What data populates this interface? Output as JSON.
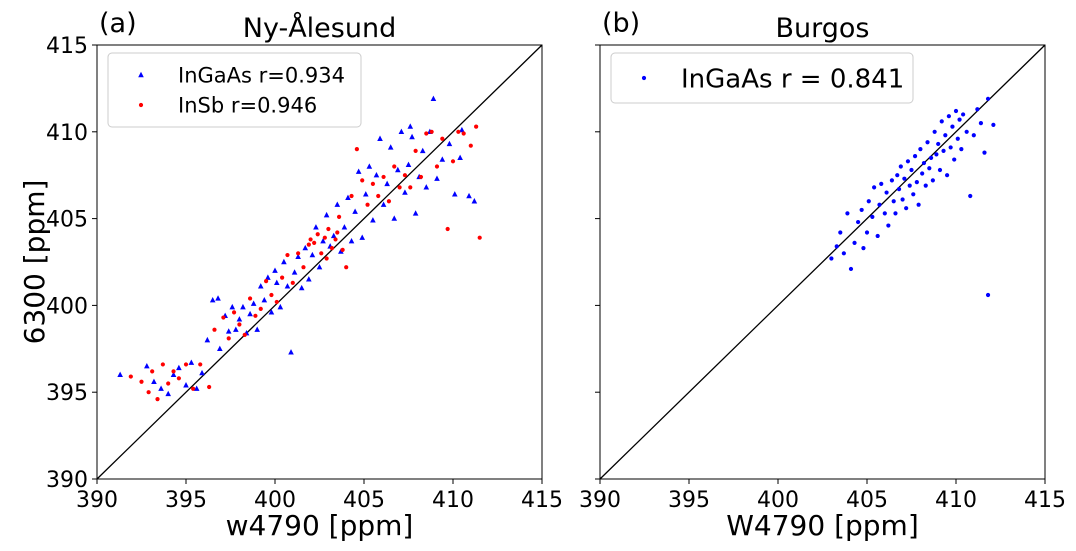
{
  "chart_data": [
    {
      "type": "scatter",
      "panel_label": "(a)",
      "title": "Ny-Ålesund",
      "xlabel": "w4790 [ppm]",
      "ylabel": "6300 [ppm]",
      "xlim": [
        390,
        415
      ],
      "ylim": [
        390,
        415
      ],
      "xticks": [
        "390",
        "395",
        "400",
        "405",
        "410",
        "415"
      ],
      "yticks": [
        "390",
        "395",
        "400",
        "405",
        "410",
        "415"
      ],
      "grid": false,
      "legend": "top-left",
      "reference_line": "1:1",
      "series": [
        {
          "name": "InGaAs r=0.934",
          "marker": "triangle",
          "color": "#0000ff",
          "points": [
            [
              391.3,
              396.0
            ],
            [
              392.8,
              396.5
            ],
            [
              393.2,
              395.6
            ],
            [
              393.6,
              395.2
            ],
            [
              394.0,
              394.9
            ],
            [
              394.3,
              396.0
            ],
            [
              394.6,
              396.4
            ],
            [
              395.0,
              395.4
            ],
            [
              395.3,
              396.7
            ],
            [
              395.6,
              395.2
            ],
            [
              395.9,
              396.1
            ],
            [
              396.2,
              398.0
            ],
            [
              396.5,
              400.3
            ],
            [
              396.8,
              400.4
            ],
            [
              396.9,
              397.5
            ],
            [
              397.2,
              399.4
            ],
            [
              397.4,
              398.5
            ],
            [
              397.6,
              399.9
            ],
            [
              397.8,
              398.6
            ],
            [
              398.0,
              399.2
            ],
            [
              398.2,
              399.9
            ],
            [
              398.4,
              398.4
            ],
            [
              398.6,
              399.5
            ],
            [
              398.8,
              400.1
            ],
            [
              399.0,
              398.6
            ],
            [
              399.2,
              401.1
            ],
            [
              399.4,
              400.3
            ],
            [
              399.6,
              401.6
            ],
            [
              399.8,
              399.6
            ],
            [
              400.0,
              402.0
            ],
            [
              400.1,
              401.3
            ],
            [
              400.3,
              399.9
            ],
            [
              400.5,
              402.5
            ],
            [
              400.7,
              401.1
            ],
            [
              400.9,
              397.3
            ],
            [
              401.1,
              401.9
            ],
            [
              401.3,
              402.8
            ],
            [
              401.5,
              401.0
            ],
            [
              401.7,
              403.3
            ],
            [
              401.9,
              401.5
            ],
            [
              402.1,
              402.9
            ],
            [
              402.3,
              404.5
            ],
            [
              402.5,
              402.2
            ],
            [
              402.7,
              403.7
            ],
            [
              402.9,
              405.2
            ],
            [
              403.1,
              403.4
            ],
            [
              403.3,
              404.0
            ],
            [
              403.5,
              405.8
            ],
            [
              403.7,
              403.1
            ],
            [
              403.9,
              404.5
            ],
            [
              404.1,
              406.2
            ],
            [
              404.3,
              403.7
            ],
            [
              404.5,
              405.4
            ],
            [
              404.7,
              407.7
            ],
            [
              404.9,
              403.9
            ],
            [
              405.1,
              406.4
            ],
            [
              405.3,
              408.0
            ],
            [
              405.5,
              404.9
            ],
            [
              405.7,
              407.5
            ],
            [
              405.9,
              409.6
            ],
            [
              406.1,
              405.8
            ],
            [
              406.3,
              407.0
            ],
            [
              406.5,
              409.1
            ],
            [
              406.7,
              405.0
            ],
            [
              406.9,
              407.8
            ],
            [
              407.1,
              410.0
            ],
            [
              407.3,
              406.5
            ],
            [
              407.5,
              408.1
            ],
            [
              407.7,
              409.7
            ],
            [
              407.9,
              405.3
            ],
            [
              408.1,
              407.4
            ],
            [
              408.3,
              408.9
            ],
            [
              408.5,
              406.8
            ],
            [
              408.7,
              410.0
            ],
            [
              408.9,
              411.9
            ],
            [
              409.1,
              407.3
            ],
            [
              409.4,
              408.4
            ],
            [
              409.8,
              409.3
            ],
            [
              410.1,
              406.4
            ],
            [
              410.5,
              410.1
            ],
            [
              410.9,
              406.3
            ],
            [
              411.2,
              406.0
            ],
            [
              410.4,
              408.5
            ],
            [
              407.6,
              410.3
            ]
          ]
        },
        {
          "name": "InSb r=0.946",
          "marker": "circle",
          "color": "#ff0000",
          "points": [
            [
              391.9,
              395.9
            ],
            [
              392.5,
              395.6
            ],
            [
              392.9,
              395.0
            ],
            [
              393.1,
              396.2
            ],
            [
              393.4,
              394.6
            ],
            [
              393.7,
              396.6
            ],
            [
              394.0,
              395.5
            ],
            [
              394.3,
              396.2
            ],
            [
              394.6,
              395.8
            ],
            [
              395.0,
              396.6
            ],
            [
              395.4,
              395.2
            ],
            [
              395.8,
              396.6
            ],
            [
              396.3,
              395.3
            ],
            [
              396.6,
              398.6
            ],
            [
              397.1,
              399.3
            ],
            [
              397.4,
              398.1
            ],
            [
              397.7,
              399.6
            ],
            [
              398.0,
              398.9
            ],
            [
              398.3,
              398.3
            ],
            [
              398.6,
              400.4
            ],
            [
              398.9,
              399.4
            ],
            [
              399.2,
              399.8
            ],
            [
              399.5,
              401.4
            ],
            [
              399.8,
              400.6
            ],
            [
              400.1,
              400.2
            ],
            [
              400.4,
              401.6
            ],
            [
              400.7,
              402.9
            ],
            [
              401.0,
              401.3
            ],
            [
              401.3,
              403.0
            ],
            [
              401.6,
              402.2
            ],
            [
              401.9,
              403.5
            ],
            [
              402.2,
              403.6
            ],
            [
              402.4,
              404.1
            ],
            [
              402.6,
              403.0
            ],
            [
              402.8,
              403.9
            ],
            [
              403.0,
              404.4
            ],
            [
              403.2,
              403.3
            ],
            [
              403.4,
              403.8
            ],
            [
              403.6,
              405.1
            ],
            [
              403.8,
              403.2
            ],
            [
              404.0,
              402.2
            ],
            [
              404.3,
              406.3
            ],
            [
              404.6,
              409.0
            ],
            [
              404.9,
              407.2
            ],
            [
              405.2,
              405.8
            ],
            [
              405.5,
              407.0
            ],
            [
              405.8,
              406.3
            ],
            [
              406.1,
              407.4
            ],
            [
              406.4,
              406.0
            ],
            [
              406.7,
              408.0
            ],
            [
              407.0,
              406.8
            ],
            [
              407.3,
              407.5
            ],
            [
              407.6,
              406.8
            ],
            [
              407.9,
              408.9
            ],
            [
              408.2,
              407.4
            ],
            [
              408.5,
              409.9
            ],
            [
              408.8,
              410.0
            ],
            [
              409.1,
              408.0
            ],
            [
              409.4,
              409.6
            ],
            [
              409.7,
              404.4
            ],
            [
              410.0,
              408.3
            ],
            [
              410.3,
              410.0
            ],
            [
              410.6,
              409.9
            ],
            [
              411.0,
              409.2
            ],
            [
              411.3,
              410.3
            ],
            [
              411.5,
              403.9
            ],
            [
              402.0,
              403.8
            ],
            [
              402.9,
              402.7
            ],
            [
              403.5,
              404.2
            ]
          ]
        }
      ]
    },
    {
      "type": "scatter",
      "panel_label": "(b)",
      "title": "Burgos",
      "xlabel": "W4790 [ppm]",
      "ylabel": "",
      "xlim": [
        390,
        415
      ],
      "ylim": [
        390,
        415
      ],
      "xticks": [
        "390",
        "395",
        "400",
        "405",
        "410",
        "415"
      ],
      "yticks": [],
      "grid": false,
      "legend": "top-left",
      "reference_line": "1:1",
      "series": [
        {
          "name": "InGaAs r = 0.841",
          "marker": "circle",
          "color": "#0000ff",
          "points": [
            [
              403.0,
              402.7
            ],
            [
              403.3,
              403.4
            ],
            [
              403.5,
              404.2
            ],
            [
              403.7,
              403.0
            ],
            [
              403.9,
              405.3
            ],
            [
              404.1,
              402.1
            ],
            [
              404.3,
              403.6
            ],
            [
              404.5,
              404.8
            ],
            [
              404.7,
              405.5
            ],
            [
              404.8,
              403.3
            ],
            [
              405.0,
              404.2
            ],
            [
              405.1,
              406.0
            ],
            [
              405.3,
              405.1
            ],
            [
              405.4,
              406.8
            ],
            [
              405.6,
              404.0
            ],
            [
              405.7,
              405.8
            ],
            [
              405.8,
              407.0
            ],
            [
              406.0,
              405.3
            ],
            [
              406.1,
              406.5
            ],
            [
              406.2,
              404.6
            ],
            [
              406.4,
              407.2
            ],
            [
              406.5,
              406.0
            ],
            [
              406.6,
              405.3
            ],
            [
              406.7,
              407.5
            ],
            [
              406.8,
              406.7
            ],
            [
              406.9,
              408.0
            ],
            [
              407.0,
              406.1
            ],
            [
              407.1,
              407.3
            ],
            [
              407.2,
              405.6
            ],
            [
              407.3,
              408.3
            ],
            [
              407.4,
              406.9
            ],
            [
              407.5,
              407.8
            ],
            [
              407.6,
              406.4
            ],
            [
              407.7,
              408.6
            ],
            [
              407.8,
              407.1
            ],
            [
              407.9,
              405.8
            ],
            [
              408.0,
              409.0
            ],
            [
              408.1,
              407.6
            ],
            [
              408.2,
              408.2
            ],
            [
              408.3,
              406.9
            ],
            [
              408.4,
              409.4
            ],
            [
              408.5,
              407.9
            ],
            [
              408.6,
              408.5
            ],
            [
              408.7,
              407.2
            ],
            [
              408.8,
              410.0
            ],
            [
              408.9,
              408.7
            ],
            [
              409.0,
              409.3
            ],
            [
              409.1,
              407.8
            ],
            [
              409.2,
              410.6
            ],
            [
              409.3,
              408.9
            ],
            [
              409.4,
              409.8
            ],
            [
              409.5,
              407.5
            ],
            [
              409.6,
              410.9
            ],
            [
              409.7,
              409.1
            ],
            [
              409.8,
              410.3
            ],
            [
              409.9,
              408.4
            ],
            [
              410.0,
              411.2
            ],
            [
              410.1,
              409.6
            ],
            [
              410.2,
              410.7
            ],
            [
              410.3,
              409.0
            ],
            [
              410.4,
              411.0
            ],
            [
              410.6,
              410.0
            ],
            [
              410.8,
              406.3
            ],
            [
              411.0,
              409.8
            ],
            [
              411.2,
              411.3
            ],
            [
              411.4,
              410.5
            ],
            [
              411.6,
              408.8
            ],
            [
              411.8,
              411.9
            ],
            [
              412.1,
              410.4
            ],
            [
              411.8,
              400.6
            ]
          ]
        }
      ]
    }
  ]
}
